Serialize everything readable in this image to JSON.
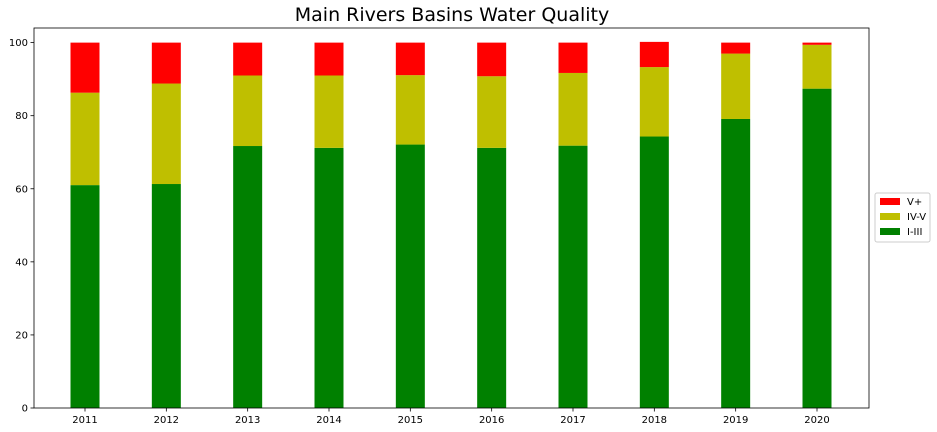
{
  "chart_data": {
    "type": "bar",
    "stacked": true,
    "title": "Main Rivers Basins Water Quality",
    "xlabel": "",
    "ylabel": "",
    "categories": [
      "2011",
      "2012",
      "2013",
      "2014",
      "2015",
      "2016",
      "2017",
      "2018",
      "2019",
      "2020"
    ],
    "ylim": [
      0,
      104
    ],
    "yticks": [
      0,
      20,
      40,
      60,
      80,
      100
    ],
    "grid": false,
    "legend_position": "right",
    "series": [
      {
        "name": "I-III",
        "color": "#008000",
        "values": [
          61.0,
          61.3,
          71.7,
          71.2,
          72.1,
          71.2,
          71.8,
          74.3,
          79.1,
          87.4
        ]
      },
      {
        "name": "IV-V",
        "color": "#bfbf00",
        "values": [
          25.3,
          27.5,
          19.3,
          19.8,
          19.0,
          19.6,
          19.9,
          19.0,
          17.9,
          12.0
        ]
      },
      {
        "name": "V+",
        "color": "#ff0000",
        "values": [
          13.7,
          11.2,
          9.0,
          9.0,
          8.9,
          9.2,
          8.3,
          6.9,
          3.0,
          0.6
        ]
      }
    ],
    "legend_order": [
      "V+",
      "IV-V",
      "I-III"
    ]
  }
}
